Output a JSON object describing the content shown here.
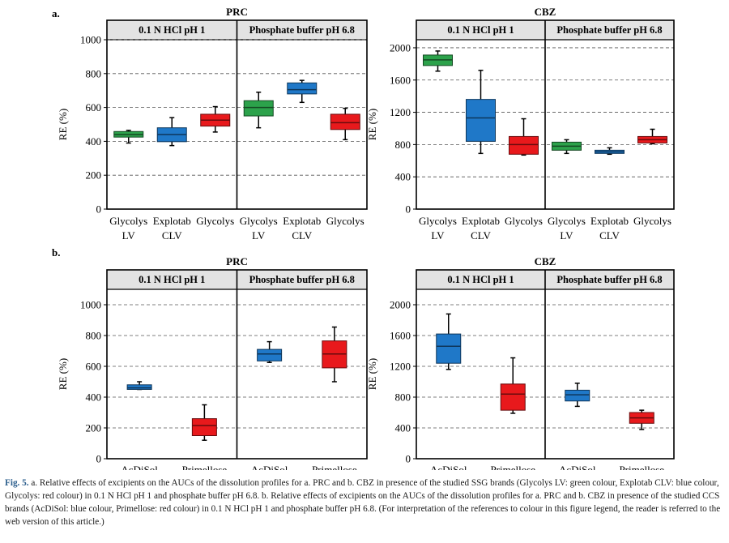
{
  "panel_labels": [
    "a.",
    "b."
  ],
  "colors": {
    "green": "#2ca24b",
    "blue": "#1f78c8",
    "red": "#e8191c"
  },
  "caption": {
    "label": "Fig. 5.",
    "text": " a. Relative effects of excipients on the AUCs of the dissolution profiles for a. PRC and b. CBZ in presence of the studied SSG brands (Glycolys LV: green colour, Explotab CLV: blue colour, Glycolys: red colour) in 0.1 N HCl pH 1 and phosphate buffer pH 6.8. b. Relative effects of excipients on the AUCs of the dissolution profiles for a. PRC and b. CBZ in presence of the studied CCS brands (AcDiSol: blue colour, Primellose: red colour) in 0.1 N HCl pH 1 and phosphate buffer pH 6.8. (For interpretation of the references to colour in this figure legend, the reader is referred to the web version of this article.)"
  },
  "chart_data": [
    {
      "type": "boxplot",
      "panel": "a.",
      "title": "PRC",
      "ylabel": "RE (%)",
      "ylim": [
        0,
        1000
      ],
      "yticks": [
        0,
        200,
        400,
        600,
        800,
        1000
      ],
      "tick_labels": [
        "0",
        "200",
        "400",
        "600",
        "800",
        "1000"
      ],
      "groups": [
        "0.1 N HCl pH 1",
        "Phosphate buffer pH 6.8"
      ],
      "categories": [
        [
          "Glycolys",
          "LV"
        ],
        [
          "Explotab",
          "CLV"
        ],
        [
          "Glycolys",
          ""
        ],
        [
          "Glycolys",
          "LV"
        ],
        [
          "Explotab",
          "CLV"
        ],
        [
          "Glycolys",
          ""
        ]
      ],
      "boxes": [
        {
          "min": 390,
          "q1": 425,
          "median": 440,
          "q3": 458,
          "max": 465,
          "color": "green"
        },
        {
          "min": 375,
          "q1": 398,
          "median": 440,
          "q3": 480,
          "max": 540,
          "color": "blue"
        },
        {
          "min": 455,
          "q1": 490,
          "median": 525,
          "q3": 560,
          "max": 605,
          "color": "red"
        },
        {
          "min": 480,
          "q1": 550,
          "median": 600,
          "q3": 640,
          "max": 690,
          "color": "green"
        },
        {
          "min": 630,
          "q1": 680,
          "median": 705,
          "q3": 745,
          "max": 760,
          "color": "blue"
        },
        {
          "min": 410,
          "q1": 470,
          "median": 510,
          "q3": 560,
          "max": 595,
          "color": "red"
        }
      ]
    },
    {
      "type": "boxplot",
      "panel": "a.",
      "title": "CBZ",
      "ylabel": "RE (%)",
      "ylim": [
        0,
        2100
      ],
      "yticks": [
        0,
        400,
        800,
        1200,
        1600,
        2000
      ],
      "tick_labels": [
        "0",
        "400",
        "800",
        "1200",
        "1600",
        "2000"
      ],
      "groups": [
        "0.1 N HCl pH 1",
        "Phosphate buffer pH 6.8"
      ],
      "categories": [
        [
          "Glycolys",
          "LV"
        ],
        [
          "Explotab",
          "CLV"
        ],
        [
          "Glycolys",
          ""
        ],
        [
          "Glycolys",
          "LV"
        ],
        [
          "Explotab",
          "CLV"
        ],
        [
          "Glycolys",
          ""
        ]
      ],
      "boxes": [
        {
          "min": 1710,
          "q1": 1780,
          "median": 1850,
          "q3": 1910,
          "max": 1960,
          "color": "green"
        },
        {
          "min": 690,
          "q1": 840,
          "median": 1130,
          "q3": 1360,
          "max": 1720,
          "color": "blue"
        },
        {
          "min": 670,
          "q1": 680,
          "median": 800,
          "q3": 900,
          "max": 1120,
          "color": "red"
        },
        {
          "min": 690,
          "q1": 730,
          "median": 780,
          "q3": 830,
          "max": 860,
          "color": "green"
        },
        {
          "min": 680,
          "q1": 690,
          "median": 710,
          "q3": 730,
          "max": 760,
          "color": "blue"
        },
        {
          "min": 810,
          "q1": 820,
          "median": 860,
          "q3": 900,
          "max": 990,
          "color": "red"
        }
      ]
    },
    {
      "type": "boxplot",
      "panel": "b.",
      "title": "PRC",
      "ylabel": "RE (%)",
      "ylim": [
        0,
        1100
      ],
      "yticks": [
        0,
        200,
        400,
        600,
        800,
        1000
      ],
      "tick_labels": [
        "0",
        "200",
        "400",
        "600",
        "800",
        "1000"
      ],
      "groups": [
        "0.1 N HCl pH 1",
        "Phosphate buffer pH 6.8"
      ],
      "categories": [
        [
          "AcDiSol",
          ""
        ],
        [
          "Primellose",
          ""
        ],
        [
          "AcDiSol",
          ""
        ],
        [
          "Primellose",
          ""
        ]
      ],
      "boxes": [
        {
          "min": 450,
          "q1": 450,
          "median": 460,
          "q3": 480,
          "max": 500,
          "color": "blue"
        },
        {
          "min": 120,
          "q1": 150,
          "median": 215,
          "q3": 260,
          "max": 350,
          "color": "red"
        },
        {
          "min": 625,
          "q1": 635,
          "median": 680,
          "q3": 710,
          "max": 760,
          "color": "blue"
        },
        {
          "min": 500,
          "q1": 590,
          "median": 680,
          "q3": 765,
          "max": 855,
          "color": "red"
        }
      ]
    },
    {
      "type": "boxplot",
      "panel": "b.",
      "title": "CBZ",
      "ylabel": "RE (%)",
      "ylim": [
        0,
        2200
      ],
      "yticks": [
        0,
        400,
        800,
        1200,
        1600,
        2000
      ],
      "tick_labels": [
        "0",
        "400",
        "800",
        "1200",
        "1600",
        "2000"
      ],
      "groups": [
        "0.1 N HCl pH 1",
        "Phosphate buffer pH 6.8"
      ],
      "categories": [
        [
          "AcDiSol",
          ""
        ],
        [
          "Primellose",
          ""
        ],
        [
          "AcDiSol",
          ""
        ],
        [
          "Primellose",
          ""
        ]
      ],
      "boxes": [
        {
          "min": 1160,
          "q1": 1240,
          "median": 1460,
          "q3": 1620,
          "max": 1880,
          "color": "blue"
        },
        {
          "min": 590,
          "q1": 630,
          "median": 840,
          "q3": 970,
          "max": 1310,
          "color": "red"
        },
        {
          "min": 680,
          "q1": 750,
          "median": 830,
          "q3": 890,
          "max": 980,
          "color": "blue"
        },
        {
          "min": 380,
          "q1": 460,
          "median": 530,
          "q3": 600,
          "max": 630,
          "color": "red"
        }
      ]
    }
  ]
}
